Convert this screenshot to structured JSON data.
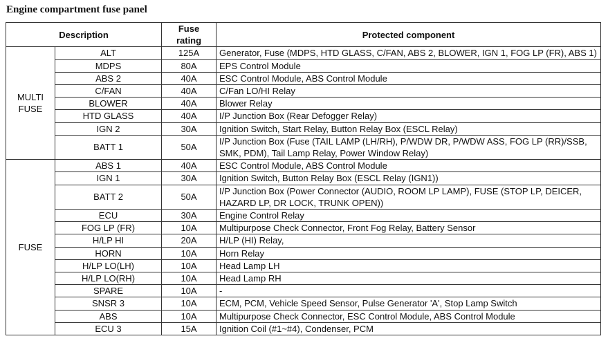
{
  "title": "Engine compartment fuse panel",
  "headers": {
    "description": "Description",
    "fuse_rating": "Fuse rating",
    "protected_component": "Protected component"
  },
  "groups": [
    {
      "label_lines": [
        "MULTI",
        "FUSE"
      ],
      "rows": [
        {
          "name": "ALT",
          "rating": "125A",
          "component": "Generator, Fuse (MDPS, HTD GLASS, C/FAN, ABS 2, BLOWER, IGN 1, FOG LP (FR), ABS 1)"
        },
        {
          "name": "MDPS",
          "rating": "80A",
          "component": "EPS Control Module"
        },
        {
          "name": "ABS 2",
          "rating": "40A",
          "component": "ESC Control Module, ABS Control Module"
        },
        {
          "name": "C/FAN",
          "rating": "40A",
          "component": "C/Fan LO/HI Relay"
        },
        {
          "name": "BLOWER",
          "rating": "40A",
          "component": "Blower Relay"
        },
        {
          "name": "HTD GLASS",
          "rating": "40A",
          "component": "I/P Junction Box (Rear Defogger Relay)"
        },
        {
          "name": "IGN 2",
          "rating": "30A",
          "component": "Ignition Switch, Start Relay, Button Relay Box (ESCL Relay)"
        },
        {
          "name": "BATT 1",
          "rating": "50A",
          "component": "I/P Junction Box (Fuse (TAIL LAMP (LH/RH), P/WDW DR, P/WDW ASS, FOG LP (RR)/SSB, SMK, PDM), Tail Lamp Relay, Power Window Relay)"
        }
      ]
    },
    {
      "label_lines": [
        "FUSE"
      ],
      "rows": [
        {
          "name": "ABS 1",
          "rating": "40A",
          "component": "ESC Control Module, ABS Control Module"
        },
        {
          "name": "IGN 1",
          "rating": "30A",
          "component": "Ignition Switch, Button Relay Box (ESCL Relay (IGN1))"
        },
        {
          "name": "BATT 2",
          "rating": "50A",
          "component": "I/P Junction Box (Power Connector (AUDIO, ROOM LP LAMP), FUSE (STOP LP, DEICER, HAZARD LP, DR LOCK, TRUNK OPEN))"
        },
        {
          "name": "ECU",
          "rating": "30A",
          "component": "Engine Control Relay"
        },
        {
          "name": "FOG LP (FR)",
          "rating": "10A",
          "component": "Multipurpose Check Connector, Front Fog Relay, Battery Sensor"
        },
        {
          "name": "H/LP HI",
          "rating": "20A",
          "component": "H/LP (HI) Relay,"
        },
        {
          "name": "HORN",
          "rating": "10A",
          "component": "Horn Relay"
        },
        {
          "name": "H/LP LO(LH)",
          "rating": "10A",
          "component": "Head Lamp LH"
        },
        {
          "name": "H/LP LO(RH)",
          "rating": "10A",
          "component": "Head Lamp RH"
        },
        {
          "name": "SPARE",
          "rating": "10A",
          "component": "-"
        },
        {
          "name": "SNSR 3",
          "rating": "10A",
          "component": "ECM, PCM, Vehicle Speed Sensor, Pulse Generator 'A', Stop Lamp Switch"
        },
        {
          "name": "ABS",
          "rating": "10A",
          "component": "Multipurpose Check Connector, ESC Control Module, ABS Control Module"
        },
        {
          "name": "ECU 3",
          "rating": "15A",
          "component": "Ignition Coil (#1~#4), Condenser, PCM"
        }
      ]
    }
  ]
}
